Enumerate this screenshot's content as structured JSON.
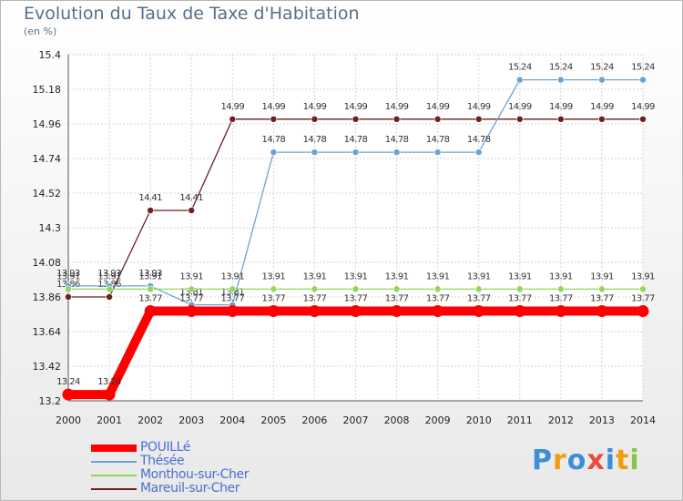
{
  "title": "Evolution du Taux de Taxe d'Habitation",
  "unit": "(en %)",
  "logo": [
    "P",
    "r",
    "o",
    "x",
    "i",
    "t",
    "i"
  ],
  "colors": {
    "POUILLé": "#ff0000",
    "Thésée": "#6ba3d6",
    "Monthou-sur-Cher": "#8ed85a",
    "Mareuil-sur-Cher": "#6e1f22",
    "logo": [
      "#3a8fd8",
      "#f39c12",
      "#3a8fd8",
      "#e74c3c",
      "#3a8fd8",
      "#f39c12",
      "#8bc34a"
    ]
  },
  "chart_data": {
    "type": "line",
    "title": "Evolution du Taux de Taxe d'Habitation",
    "ylabel": "(en %)",
    "x": [
      "2000",
      "2001",
      "2002",
      "2003",
      "2004",
      "2005",
      "2006",
      "2007",
      "2008",
      "2009",
      "2010",
      "2011",
      "2012",
      "2013",
      "2014"
    ],
    "ylim": [
      13.2,
      15.4
    ],
    "yticks": [
      "13.2",
      "13.42",
      "13.64",
      "13.86",
      "14.08",
      "14.3",
      "14.52",
      "14.74",
      "14.96",
      "15.18",
      "15.4"
    ],
    "grid": true,
    "legend": "bottom-left",
    "series": [
      {
        "name": "POUILLé",
        "values": [
          13.24,
          13.24,
          13.77,
          13.77,
          13.77,
          13.77,
          13.77,
          13.77,
          13.77,
          13.77,
          13.77,
          13.77,
          13.77,
          13.77,
          13.77
        ],
        "labels": [
          "13.24",
          "13.24",
          "13.77",
          "13.77",
          "13.77",
          "13.77",
          "13.77",
          "13.77",
          "13.77",
          "13.77",
          "13.77",
          "13.77",
          "13.77",
          "13.77",
          "13.77"
        ]
      },
      {
        "name": "Thésée",
        "values": [
          13.93,
          13.93,
          13.93,
          13.81,
          13.81,
          14.78,
          14.78,
          14.78,
          14.78,
          14.78,
          14.78,
          15.24,
          15.24,
          15.24,
          15.24
        ],
        "labels": [
          "13.93",
          "13.93",
          "13.93",
          "13.81",
          "13.81",
          "14.78",
          "14.78",
          "14.78",
          "14.78",
          "14.78",
          "14.78",
          "15.24",
          "15.24",
          "15.24",
          "15.24"
        ]
      },
      {
        "name": "Monthou-sur-Cher",
        "values": [
          13.91,
          13.91,
          13.91,
          13.91,
          13.91,
          13.91,
          13.91,
          13.91,
          13.91,
          13.91,
          13.91,
          13.91,
          13.91,
          13.91,
          13.91
        ],
        "labels": [
          "13.91",
          "13.91",
          "13.91",
          "13.91",
          "13.91",
          "13.91",
          "13.91",
          "13.91",
          "13.91",
          "13.91",
          "13.91",
          "13.91",
          "13.91",
          "13.91",
          "13.91"
        ]
      },
      {
        "name": "Mareuil-sur-Cher",
        "values": [
          13.86,
          13.86,
          14.41,
          14.41,
          14.99,
          14.99,
          14.99,
          14.99,
          14.99,
          14.99,
          14.99,
          14.99,
          14.99,
          14.99,
          14.99
        ],
        "labels": [
          "13.86",
          "13.86",
          "14.41",
          "14.41",
          "14.99",
          "14.99",
          "14.99",
          "14.99",
          "14.99",
          "14.99",
          "14.99",
          "14.99",
          "14.99",
          "14.99",
          "14.99"
        ]
      }
    ]
  }
}
